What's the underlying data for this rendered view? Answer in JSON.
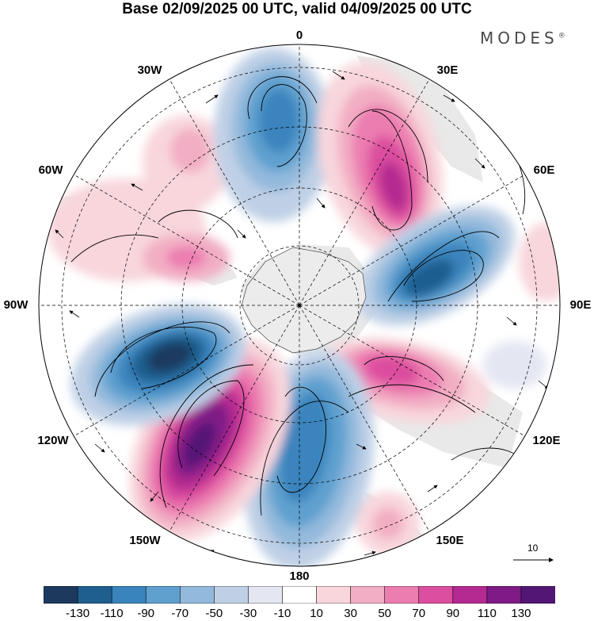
{
  "title": "Base 02/09/2025 00 UTC, valid 04/09/2025 00 UTC",
  "brand": "MODES",
  "brand_mark": "®",
  "longitude_labels": {
    "lon_0": "0",
    "lon_30e": "30E",
    "lon_60e": "60E",
    "lon_90e": "90E",
    "lon_120e": "120E",
    "lon_150e": "150E",
    "lon_180": "180",
    "lon_150w": "150W",
    "lon_120w": "120W",
    "lon_90w": "90W",
    "lon_60w": "60W",
    "lon_30w": "30W"
  },
  "reference_vector": {
    "value": "10"
  },
  "colorbar": {
    "colors": [
      "#1d3a5e",
      "#1f5f8f",
      "#3a84bd",
      "#5fa0cf",
      "#93b9dc",
      "#bfd0e6",
      "#e4e6f2",
      "#ffffff",
      "#f8d6dc",
      "#f2aec4",
      "#ec7db0",
      "#dc4e9f",
      "#b42a90",
      "#7f1a86",
      "#521674"
    ],
    "tick_labels": [
      "-130",
      "-110",
      "-90",
      "-70",
      "-50",
      "-30",
      "-10",
      "10",
      "30",
      "50",
      "70",
      "90",
      "110",
      "130"
    ]
  },
  "anomaly_cells": [
    {
      "name": "positive-anomaly-south-atlantic",
      "sign": "positive",
      "level": 70
    },
    {
      "name": "negative-anomaly-south-atlantic",
      "sign": "negative",
      "level": -90
    },
    {
      "name": "positive-anomaly-south-africa",
      "sign": "positive",
      "level": 90
    },
    {
      "name": "negative-anomaly-indian-ocean",
      "sign": "negative",
      "level": -110
    },
    {
      "name": "positive-anomaly-south-australia",
      "sign": "positive",
      "level": 90
    },
    {
      "name": "negative-anomaly-ross-sea",
      "sign": "negative",
      "level": -90
    },
    {
      "name": "positive-anomaly-south-pacific",
      "sign": "positive",
      "level": 130
    },
    {
      "name": "negative-anomaly-amundsen-sea",
      "sign": "negative",
      "level": -130
    }
  ]
}
